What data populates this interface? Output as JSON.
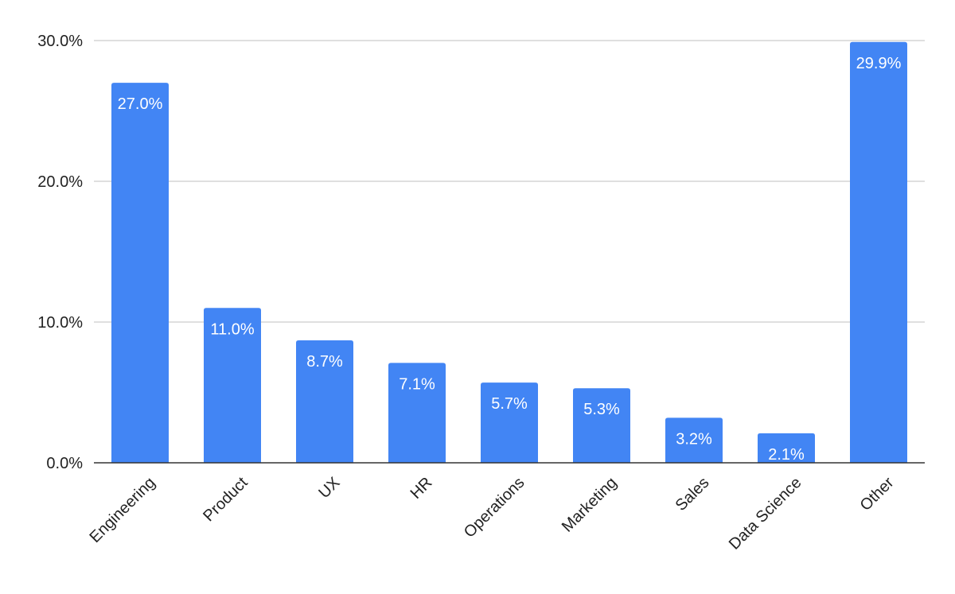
{
  "chart_data": {
    "type": "bar",
    "title": "",
    "xlabel": "",
    "ylabel": "",
    "categories": [
      "Engineering",
      "Product",
      "UX",
      "HR",
      "Operations",
      "Marketing",
      "Sales",
      "Data Science",
      "Other"
    ],
    "values": [
      27.0,
      11.0,
      8.7,
      7.1,
      5.7,
      5.3,
      3.2,
      2.1,
      29.9
    ],
    "data_labels": [
      "27.0%",
      "11.0%",
      "8.7%",
      "7.1%",
      "5.7%",
      "5.3%",
      "3.2%",
      "2.1%",
      "29.9%"
    ],
    "ylim": [
      0,
      30
    ],
    "y_ticks": [
      0,
      10,
      20,
      30
    ],
    "y_tick_labels": [
      "0.0%",
      "10.0%",
      "20.0%",
      "30.0%"
    ],
    "grid": true,
    "legend": "none",
    "bar_color": "#4285f4"
  }
}
